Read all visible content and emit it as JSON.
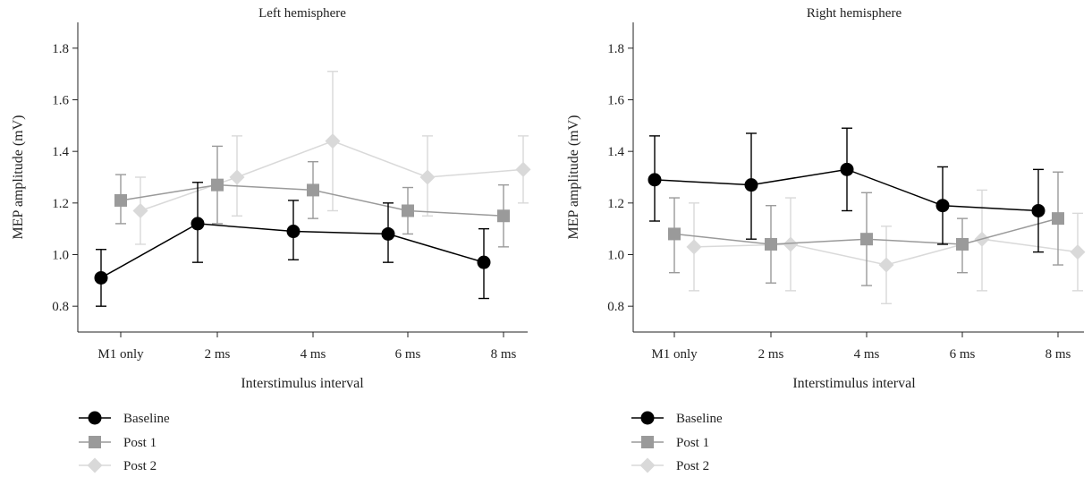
{
  "chart_data": [
    {
      "type": "line",
      "title": "Left hemisphere",
      "xlabel": "Interstimulus interval",
      "ylabel": "MEP amplitude (mV)",
      "ylim": [
        0.7,
        1.9
      ],
      "yticks": [
        "0.8",
        "1.0",
        "1.2",
        "1.4",
        "1.6",
        "1.8"
      ],
      "categories": [
        "M1 only",
        "2 ms",
        "4 ms",
        "6 ms",
        "8 ms"
      ],
      "grid": false,
      "legend": "bottom-left",
      "series": [
        {
          "name": "Baseline",
          "marker": "circle",
          "color": "#000000",
          "values": [
            0.91,
            1.12,
            1.09,
            1.08,
            0.97
          ],
          "lower": [
            0.8,
            0.97,
            0.98,
            0.97,
            0.83
          ],
          "upper": [
            1.02,
            1.28,
            1.21,
            1.2,
            1.1
          ]
        },
        {
          "name": "Post 1",
          "marker": "square",
          "color": "#9a9a9a",
          "values": [
            1.21,
            1.27,
            1.25,
            1.17,
            1.15
          ],
          "lower": [
            1.12,
            1.12,
            1.14,
            1.08,
            1.03
          ],
          "upper": [
            1.31,
            1.42,
            1.36,
            1.26,
            1.27
          ]
        },
        {
          "name": "Post 2",
          "marker": "diamond",
          "color": "#d9d9d9",
          "values": [
            1.17,
            1.3,
            1.44,
            1.3,
            1.33
          ],
          "lower": [
            1.04,
            1.15,
            1.17,
            1.15,
            1.2
          ],
          "upper": [
            1.3,
            1.46,
            1.71,
            1.46,
            1.46
          ]
        }
      ]
    },
    {
      "type": "line",
      "title": "Right hemisphere",
      "xlabel": "Interstimulus interval",
      "ylabel": "MEP amplitude (mV)",
      "ylim": [
        0.7,
        1.9
      ],
      "yticks": [
        "0.8",
        "1.0",
        "1.2",
        "1.4",
        "1.6",
        "1.8"
      ],
      "categories": [
        "M1 only",
        "2 ms",
        "4 ms",
        "6 ms",
        "8 ms"
      ],
      "grid": false,
      "legend": "bottom-left",
      "series": [
        {
          "name": "Baseline",
          "marker": "circle",
          "color": "#000000",
          "values": [
            1.29,
            1.27,
            1.33,
            1.19,
            1.17
          ],
          "lower": [
            1.13,
            1.06,
            1.17,
            1.04,
            1.01
          ],
          "upper": [
            1.46,
            1.47,
            1.49,
            1.34,
            1.33
          ]
        },
        {
          "name": "Post 1",
          "marker": "square",
          "color": "#9a9a9a",
          "values": [
            1.08,
            1.04,
            1.06,
            1.04,
            1.14
          ],
          "lower": [
            0.93,
            0.89,
            0.88,
            0.93,
            0.96
          ],
          "upper": [
            1.22,
            1.19,
            1.24,
            1.14,
            1.32
          ]
        },
        {
          "name": "Post 2",
          "marker": "diamond",
          "color": "#d9d9d9",
          "values": [
            1.03,
            1.04,
            0.96,
            1.06,
            1.01
          ],
          "lower": [
            0.86,
            0.86,
            0.81,
            0.86,
            0.86
          ],
          "upper": [
            1.2,
            1.22,
            1.11,
            1.25,
            1.16
          ]
        }
      ]
    }
  ]
}
